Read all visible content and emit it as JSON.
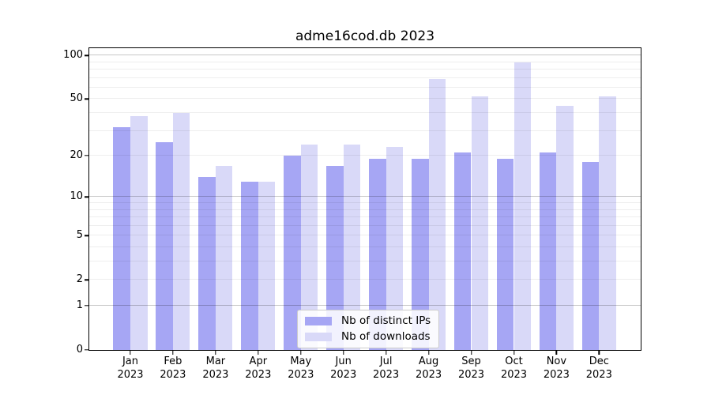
{
  "title": "adme16cod.db 2023",
  "chart_data": {
    "type": "bar",
    "title": "adme16cod.db 2023",
    "xlabel": "",
    "ylabel": "",
    "scale": "log10(1+y)",
    "ylim": [
      0,
      100
    ],
    "grid": "horizontal-only",
    "legend_position": "lower-center-inside",
    "year_label": "2023",
    "categories": [
      "Jan",
      "Feb",
      "Mar",
      "Apr",
      "May",
      "Jun",
      "Jul",
      "Aug",
      "Sep",
      "Oct",
      "Nov",
      "Dec"
    ],
    "series": [
      {
        "name": "Nb of distinct IPs",
        "color": "#a6a6f4",
        "values": [
          32,
          25,
          14,
          13,
          20,
          17,
          19,
          19,
          21,
          19,
          21,
          18
        ]
      },
      {
        "name": "Nb of downloads",
        "color": "#d9d9f8",
        "values": [
          38,
          40,
          17,
          13,
          24,
          24,
          23,
          69,
          52,
          90,
          45,
          52
        ]
      }
    ],
    "yticks": [
      0,
      1,
      2,
      5,
      10,
      20,
      50,
      100
    ],
    "major_gridlines": [
      1,
      10,
      100
    ],
    "minor_gridlines": [
      2,
      3,
      4,
      5,
      6,
      7,
      8,
      9,
      20,
      30,
      40,
      50,
      60,
      70,
      80,
      90
    ],
    "colors": {
      "major_grid": "rgba(0,0,0,0.22)",
      "minor_grid": "rgba(0,0,0,0.065)",
      "spine": "#000000",
      "text": "#000000",
      "legend_border": "#cccccc"
    }
  }
}
